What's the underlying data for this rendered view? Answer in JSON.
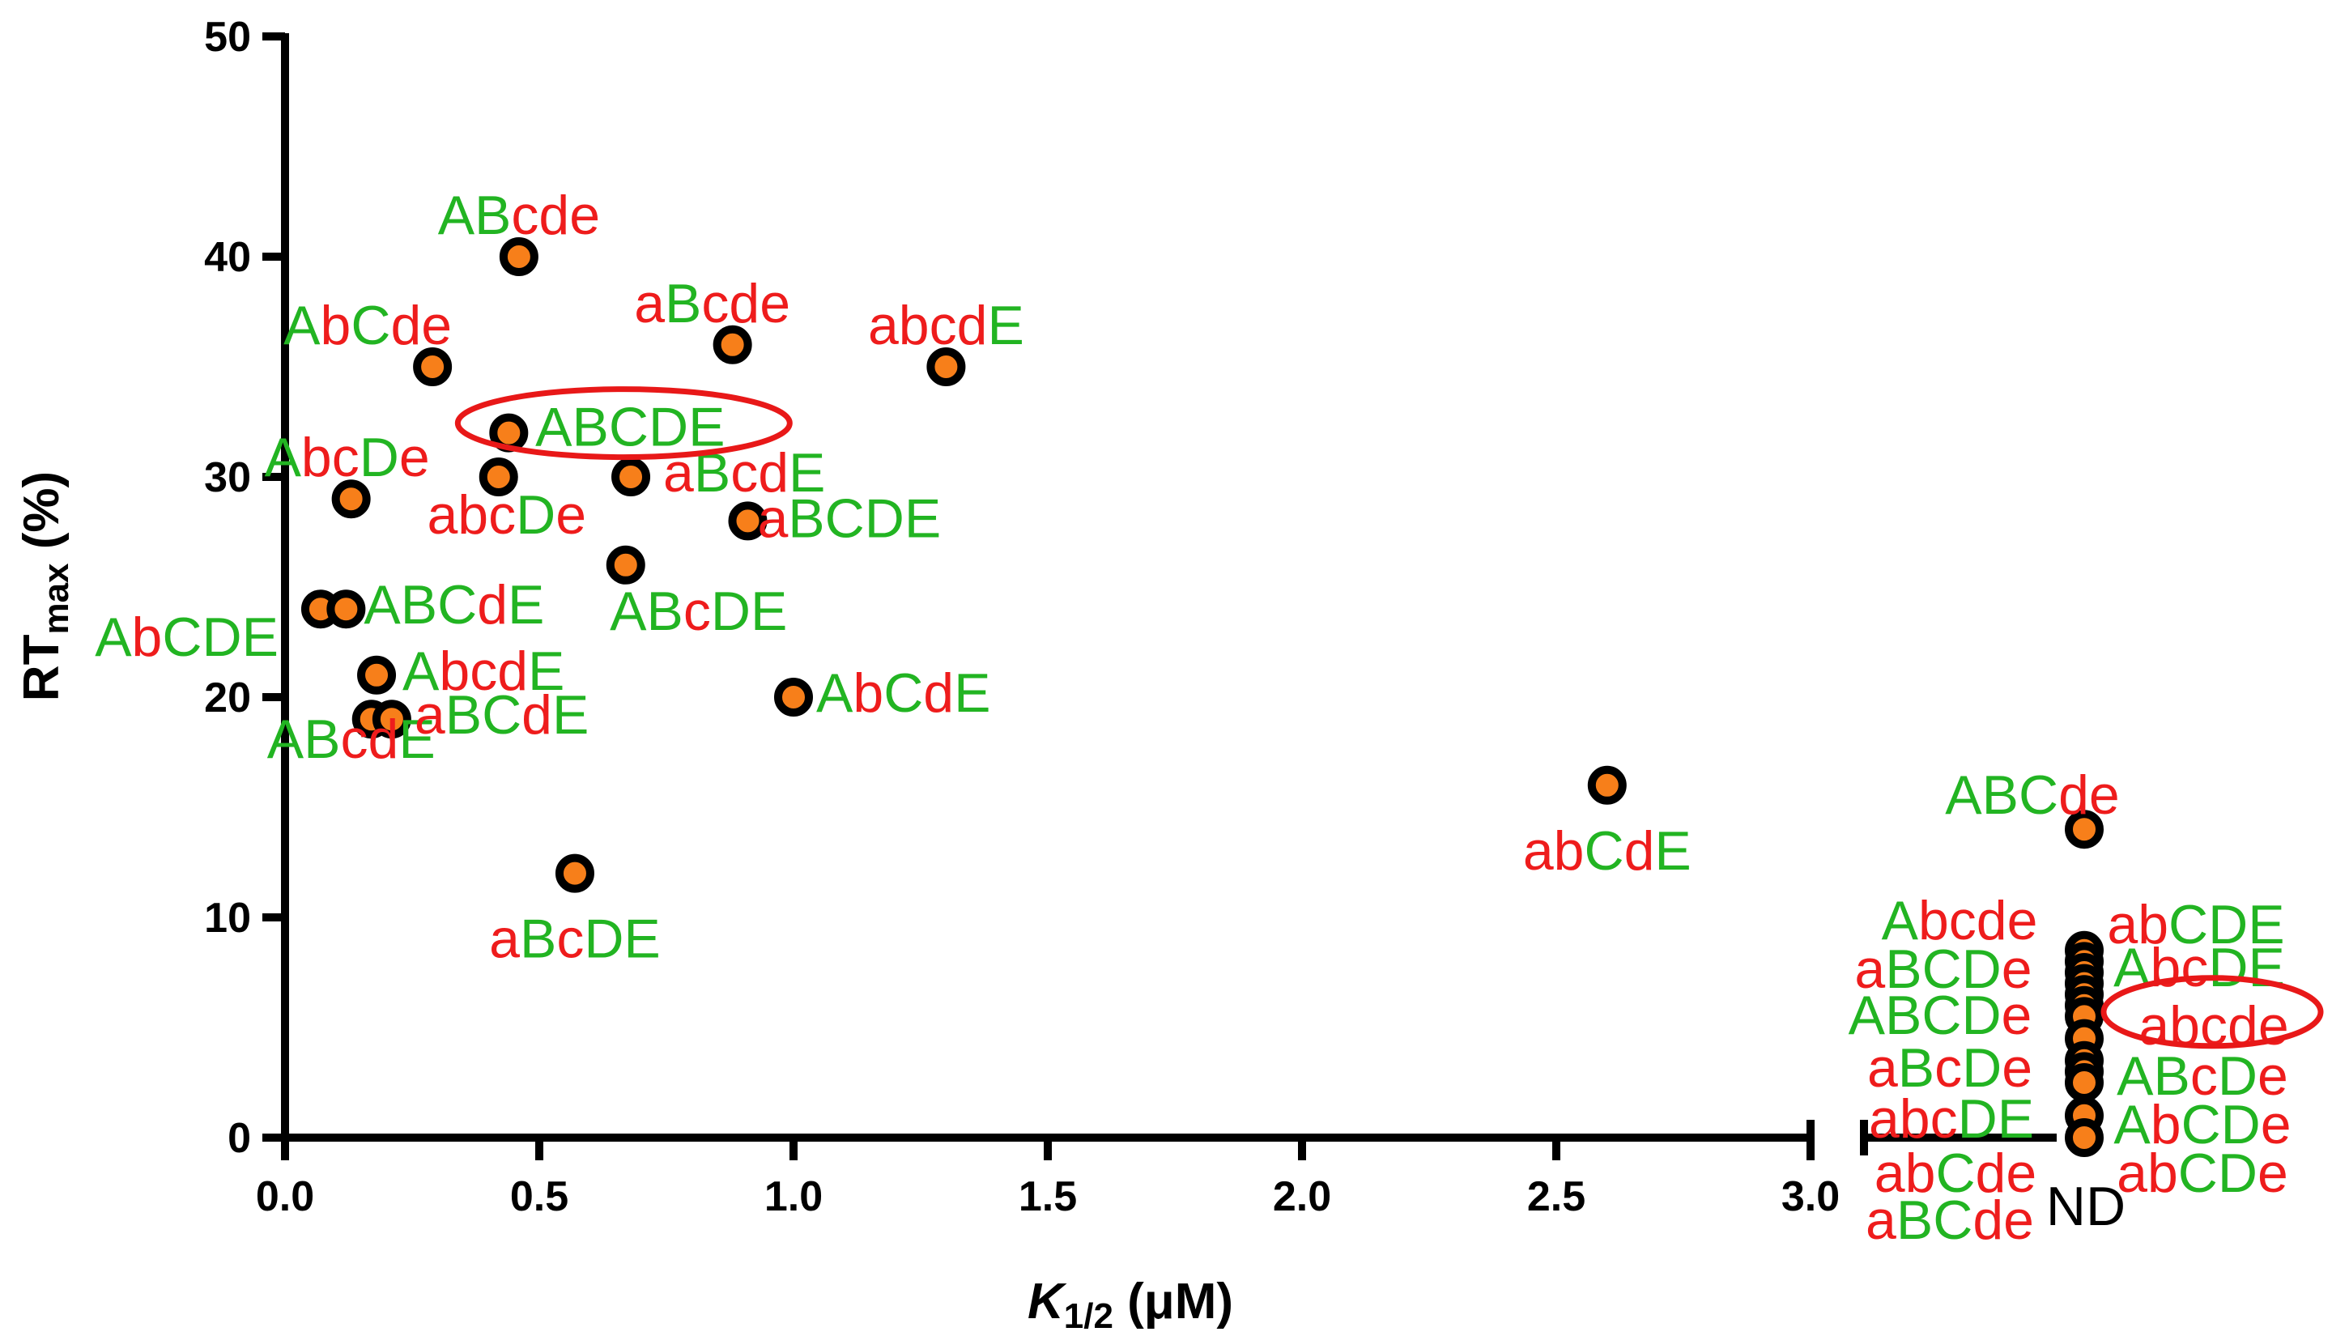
{
  "chart_data": {
    "type": "scatter",
    "title": "",
    "xlabel": {
      "main": "K",
      "sub": "1/2",
      "unit": " (μM)"
    },
    "ylabel": {
      "main": "RT",
      "sub": "max",
      "unit": " (%)"
    },
    "xlim": [
      0,
      3.0
    ],
    "ylim": [
      0,
      50
    ],
    "x_ticks": [
      "0.0",
      "0.5",
      "1.0",
      "1.5",
      "2.0",
      "2.5",
      "3.0"
    ],
    "y_ticks": [
      "0",
      "10",
      "20",
      "30",
      "40",
      "50"
    ],
    "nd_label": "ND",
    "colors": {
      "upper": "#22b422",
      "lower": "#ee1c1c",
      "marker_fill": "#f77f1a",
      "marker_edge": "#000000",
      "highlight": "#e81818"
    },
    "points": [
      {
        "x": 0.46,
        "y": 40,
        "label": "ABcde"
      },
      {
        "x": 0.29,
        "y": 35,
        "label": "AbCde"
      },
      {
        "x": 0.88,
        "y": 36,
        "label": "aBcde"
      },
      {
        "x": 1.3,
        "y": 35,
        "label": "abcdE"
      },
      {
        "x": 0.44,
        "y": 32,
        "label": "ABCDE",
        "highlighted": true
      },
      {
        "x": 0.13,
        "y": 29,
        "label": "AbcDe"
      },
      {
        "x": 0.42,
        "y": 30,
        "label": "abcDe"
      },
      {
        "x": 0.68,
        "y": 30,
        "label": "aBcdE"
      },
      {
        "x": 0.91,
        "y": 28,
        "label": "aBCDE"
      },
      {
        "x": 0.67,
        "y": 26,
        "label": "ABcDE"
      },
      {
        "x": 0.07,
        "y": 24,
        "label": "AbCDE"
      },
      {
        "x": 0.12,
        "y": 24,
        "label": "ABCdE"
      },
      {
        "x": 0.18,
        "y": 21,
        "label": "AbcdE"
      },
      {
        "x": 0.17,
        "y": 19,
        "label": "ABcdE"
      },
      {
        "x": 0.21,
        "y": 19,
        "label": "aBCdE"
      },
      {
        "x": 1.0,
        "y": 20,
        "label": "AbCdE"
      },
      {
        "x": 2.6,
        "y": 16,
        "label": "abCdE"
      },
      {
        "x": 0.57,
        "y": 12,
        "label": "aBcDE"
      }
    ],
    "nd_points": [
      {
        "y": 14,
        "label": "ABCde"
      },
      {
        "y": 8.5,
        "label": "Abcde"
      },
      {
        "y": 8.0,
        "label": "abCDE"
      },
      {
        "y": 7.5,
        "label": "aBCDe"
      },
      {
        "y": 7.0,
        "label": "AbcDE"
      },
      {
        "y": 6.5,
        "label": "ABCDe"
      },
      {
        "y": 6.0,
        "label": "abcde",
        "highlighted": true
      },
      {
        "y": 5.5,
        "label": "aBcDe"
      },
      {
        "y": 4.5,
        "label": "ABcDe"
      },
      {
        "y": 3.5,
        "label": "abcDE"
      },
      {
        "y": 3.0,
        "label": "AbCDe"
      },
      {
        "y": 2.5,
        "label": "abCde"
      },
      {
        "y": 1.0,
        "label": "abCDe"
      },
      {
        "y": 0.0,
        "label": "aBCde"
      }
    ]
  }
}
